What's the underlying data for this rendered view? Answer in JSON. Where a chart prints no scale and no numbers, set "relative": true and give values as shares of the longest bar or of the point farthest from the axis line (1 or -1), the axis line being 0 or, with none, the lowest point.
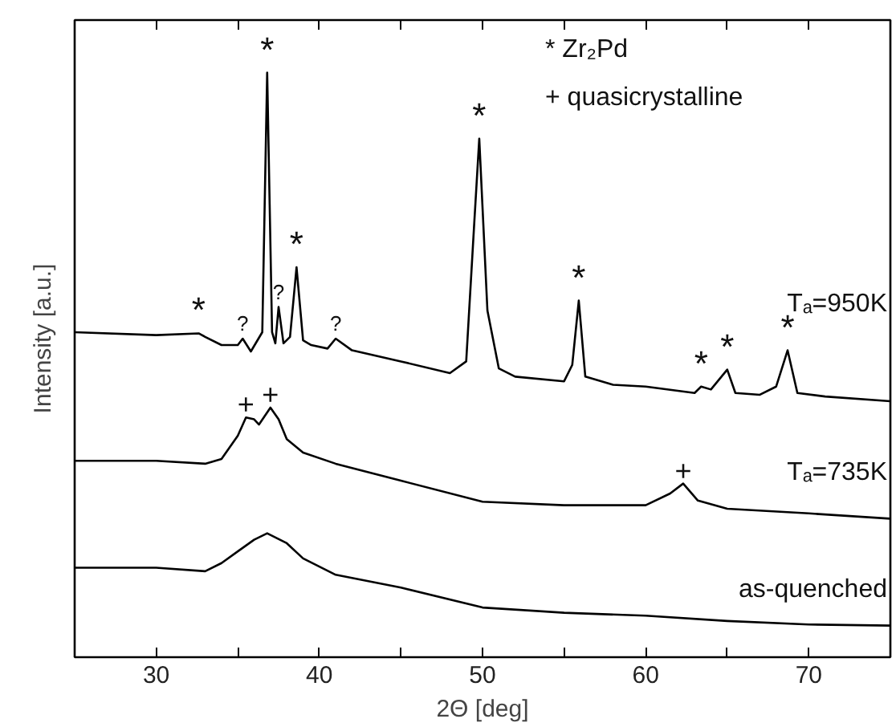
{
  "chart_data": {
    "type": "line",
    "relative": true,
    "xlabel": "2Θ [deg]",
    "ylabel": "Intensity [a.u.]",
    "xlim": [
      25,
      75
    ],
    "xticks": [
      30,
      {
        "value": 35,
        "label": null
      },
      40,
      {
        "value": 45,
        "label": null
      },
      50,
      {
        "value": 55,
        "label": null
      },
      60,
      {
        "value": 65,
        "label": null
      },
      70
    ],
    "grid": false,
    "marker": "none",
    "line_style": "solid",
    "tick_labels": "x",
    "series": [
      {
        "name": "Tₐ=950K",
        "color": "#000000",
        "x": [
          25,
          30,
          32.6,
          33,
          34,
          35,
          35.3,
          35.8,
          36.5,
          36.8,
          37.1,
          37.3,
          37.5,
          37.8,
          38.2,
          38.6,
          39.0,
          39.5,
          40.5,
          41,
          42,
          45,
          48,
          49,
          49.5,
          49.8,
          50.3,
          51,
          52,
          55,
          55.5,
          55.9,
          56.3,
          58,
          60,
          63,
          63.4,
          64,
          65,
          65.5,
          67,
          68,
          68.7,
          69.3,
          71,
          75
        ],
        "values": [
          0.556,
          0.551,
          0.554,
          0.548,
          0.534,
          0.534,
          0.545,
          0.523,
          0.556,
          1.0,
          0.556,
          0.537,
          0.599,
          0.537,
          0.548,
          0.667,
          0.542,
          0.534,
          0.528,
          0.545,
          0.525,
          0.506,
          0.486,
          0.506,
          0.746,
          0.887,
          0.593,
          0.494,
          0.48,
          0.472,
          0.5,
          0.61,
          0.48,
          0.466,
          0.463,
          0.452,
          0.463,
          0.458,
          0.492,
          0.452,
          0.449,
          0.463,
          0.525,
          0.452,
          0.446,
          0.438
        ]
      },
      {
        "name": "Tₐ=735K",
        "color": "#000000",
        "x": [
          25,
          30,
          33,
          34,
          35,
          35.5,
          36,
          36.3,
          37,
          37.5,
          38,
          39,
          41,
          45,
          50,
          55,
          58,
          60,
          61.5,
          62.3,
          63.2,
          65,
          70,
          75
        ],
        "values": [
          0.336,
          0.336,
          0.331,
          0.339,
          0.379,
          0.41,
          0.407,
          0.398,
          0.427,
          0.407,
          0.373,
          0.35,
          0.331,
          0.302,
          0.266,
          0.26,
          0.26,
          0.26,
          0.28,
          0.297,
          0.268,
          0.254,
          0.246,
          0.237
        ]
      },
      {
        "name": "as-quenched",
        "color": "#000000",
        "x": [
          25,
          30,
          33,
          34,
          35,
          36,
          36.8,
          38,
          39,
          41,
          45,
          50,
          55,
          60,
          65,
          70,
          75
        ],
        "values": [
          0.153,
          0.153,
          0.147,
          0.161,
          0.181,
          0.201,
          0.212,
          0.195,
          0.169,
          0.141,
          0.119,
          0.085,
          0.076,
          0.071,
          0.062,
          0.056,
          0.054
        ]
      }
    ],
    "annotations": [
      "* Zr₂Pd",
      "+ quasicrystalline",
      {
        "text": "*",
        "x": 32.6,
        "y": 0.554
      },
      {
        "text": "*",
        "x": 36.8,
        "y": 1.0
      },
      {
        "text": "*",
        "x": 38.6,
        "y": 0.667
      },
      {
        "text": "*",
        "x": 49.8,
        "y": 0.887
      },
      {
        "text": "*",
        "x": 55.9,
        "y": 0.61
      },
      {
        "text": "*",
        "x": 63.4,
        "y": 0.463
      },
      {
        "text": "*",
        "x": 65,
        "y": 0.492
      },
      {
        "text": "*",
        "x": 68.7,
        "y": 0.525
      },
      {
        "text": "?",
        "x": 35.3,
        "y": 0.545
      },
      {
        "text": "?",
        "x": 37.5,
        "y": 0.599
      },
      {
        "text": "?",
        "x": 41,
        "y": 0.545
      },
      {
        "text": "+",
        "x": 35.5,
        "y": 0.41
      },
      {
        "text": "+",
        "x": 37,
        "y": 0.427
      },
      {
        "text": "+",
        "x": 62.3,
        "y": 0.297
      }
    ]
  }
}
